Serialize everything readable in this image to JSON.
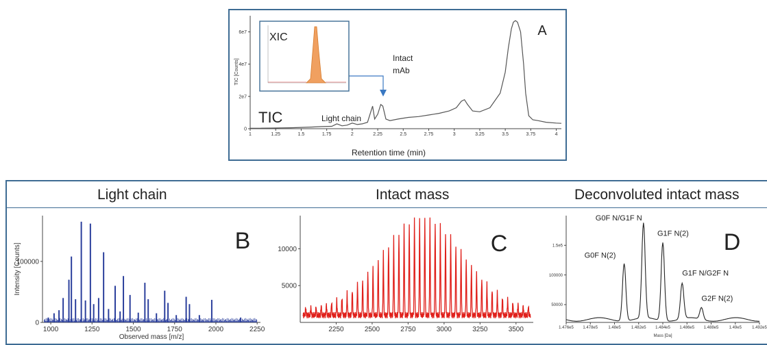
{
  "panel_a": {
    "letter": "A",
    "tic_label": "TIC",
    "ylabel": "TIC [Counts]",
    "xlabel": "Retention time (min)",
    "light_chain_label": "Light chain",
    "intact_label_line1": "Intact",
    "intact_label_line2": "mAb",
    "inset_label": "XIC"
  },
  "headings": {
    "b": "Light chain",
    "c": "Intact mass",
    "d": "Deconvoluted intact mass"
  },
  "colors": {
    "frame": "#3d6b93",
    "b_line": "#2b3f9c",
    "c_line": "#e0201b",
    "xic_fill": "#f0a060",
    "arrow": "#3a78c2"
  },
  "chart_data": [
    {
      "id": "A",
      "type": "line",
      "xlim": [
        1,
        4.05
      ],
      "ylim": [
        0,
        70000000
      ],
      "xticks": [
        1,
        1.25,
        1.5,
        1.75,
        2,
        2.25,
        2.5,
        2.75,
        3,
        3.25,
        3.5,
        3.75,
        4
      ],
      "xtick_labels": [
        "1",
        "1.25",
        "1.5",
        "1.75",
        "2",
        "2.25",
        "2.5",
        "2.75",
        "3",
        "3.25",
        "3.5",
        "3.75",
        "4"
      ],
      "yticks": [
        0,
        20000000,
        40000000,
        60000000
      ],
      "ytick_labels": [
        "0",
        "2e7",
        "4e7",
        "6e7"
      ],
      "x": [
        1.0,
        1.1,
        1.2,
        1.3,
        1.4,
        1.5,
        1.6,
        1.7,
        1.8,
        1.85,
        1.9,
        1.95,
        2.0,
        2.05,
        2.1,
        2.15,
        2.18,
        2.2,
        2.22,
        2.25,
        2.28,
        2.3,
        2.33,
        2.37,
        2.45,
        2.55,
        2.65,
        2.75,
        2.85,
        2.95,
        3.02,
        3.07,
        3.1,
        3.13,
        3.18,
        3.25,
        3.35,
        3.45,
        3.5,
        3.53,
        3.56,
        3.58,
        3.6,
        3.62,
        3.65,
        3.68,
        3.7,
        3.73,
        3.77,
        3.82,
        3.9,
        4.0,
        4.05
      ],
      "y": [
        300000,
        300000,
        400000,
        500000,
        600000,
        800000,
        1000000,
        1300000,
        1500000,
        3000000,
        1800000,
        2200000,
        3500000,
        2600000,
        3000000,
        4000000,
        10000000,
        14000000,
        6000000,
        9000000,
        15000000,
        14000000,
        6000000,
        5000000,
        6000000,
        7000000,
        7500000,
        8500000,
        9500000,
        11000000,
        13000000,
        17000000,
        18000000,
        15000000,
        11000000,
        10500000,
        13000000,
        22000000,
        35000000,
        50000000,
        62000000,
        66000000,
        67000000,
        66000000,
        60000000,
        40000000,
        22000000,
        8000000,
        5500000,
        5000000,
        4000000,
        3500000,
        3300000
      ]
    },
    {
      "id": "B",
      "type": "bar",
      "ylabel": "Intensity [Counts]",
      "xlabel": "Observed mass [m/z]",
      "letter": "B",
      "xlim": [
        950,
        2270
      ],
      "ylim": [
        0,
        175000
      ],
      "xticks": [
        1000,
        1250,
        1500,
        1750,
        2000,
        2250
      ],
      "xtick_labels": [
        "1000",
        "1250",
        "1500",
        "1750",
        "2000",
        "2250"
      ],
      "yticks": [
        0,
        100000
      ],
      "ytick_labels": [
        "0",
        "100000"
      ],
      "peaks_x": [
        985,
        1020,
        1050,
        1075,
        1110,
        1125,
        1150,
        1185,
        1210,
        1240,
        1260,
        1290,
        1320,
        1350,
        1390,
        1420,
        1440,
        1480,
        1530,
        1570,
        1590,
        1640,
        1690,
        1710,
        1760,
        1820,
        1840,
        1900,
        1975,
        2150
      ],
      "peaks_y": [
        8000,
        15000,
        20000,
        40000,
        70000,
        108000,
        38000,
        165000,
        36000,
        162000,
        30000,
        40000,
        115000,
        22000,
        60000,
        18000,
        76000,
        45000,
        16000,
        65000,
        38000,
        15000,
        52000,
        32000,
        12000,
        42000,
        30000,
        12000,
        37000,
        8000
      ]
    },
    {
      "id": "C",
      "type": "line",
      "letter": "C",
      "xlim": [
        2000,
        3620
      ],
      "ylim": [
        0,
        14500
      ],
      "xticks": [
        2250,
        2500,
        2750,
        3000,
        3250,
        3500
      ],
      "xtick_labels": [
        "2250",
        "2500",
        "2750",
        "3000",
        "3250",
        "3500"
      ],
      "yticks": [
        5000,
        10000
      ],
      "ytick_labels": [
        "5000",
        "10000"
      ],
      "peak_spacing": 36,
      "peak_start": 2020,
      "peak_end": 3600,
      "envelope_center": 2850,
      "envelope_height": 12500,
      "envelope_width": 280,
      "baseline": 1400
    },
    {
      "id": "D",
      "type": "line",
      "letter": "D",
      "xlabel": "Mass [Da]",
      "xlim": [
        147600,
        149200
      ],
      "ylim": [
        20000,
        200000
      ],
      "xticks": [
        147600,
        147800,
        148000,
        148200,
        148400,
        148600,
        148800,
        149000,
        149200
      ],
      "xtick_labels": [
        "1.476e5",
        "1.478e5",
        "1.48e5",
        "1.482e5",
        "1.484e5",
        "1.486e5",
        "1.488e5",
        "1.49e5",
        "1.492e5"
      ],
      "yticks": [
        50000,
        100000,
        150000
      ],
      "ytick_labels": [
        "50000",
        "100000",
        "1.5e5"
      ],
      "peaks": [
        {
          "label": "G0F N(2)",
          "x": 148080,
          "y": 122000
        },
        {
          "label": "G0F N/G1F N",
          "x": 148240,
          "y": 185000
        },
        {
          "label": "G1F N(2)",
          "x": 148400,
          "y": 157000
        },
        {
          "label": "G1F N/G2F N",
          "x": 148560,
          "y": 85000
        },
        {
          "label": "G2F N(2)",
          "x": 148720,
          "y": 45000
        }
      ]
    }
  ]
}
